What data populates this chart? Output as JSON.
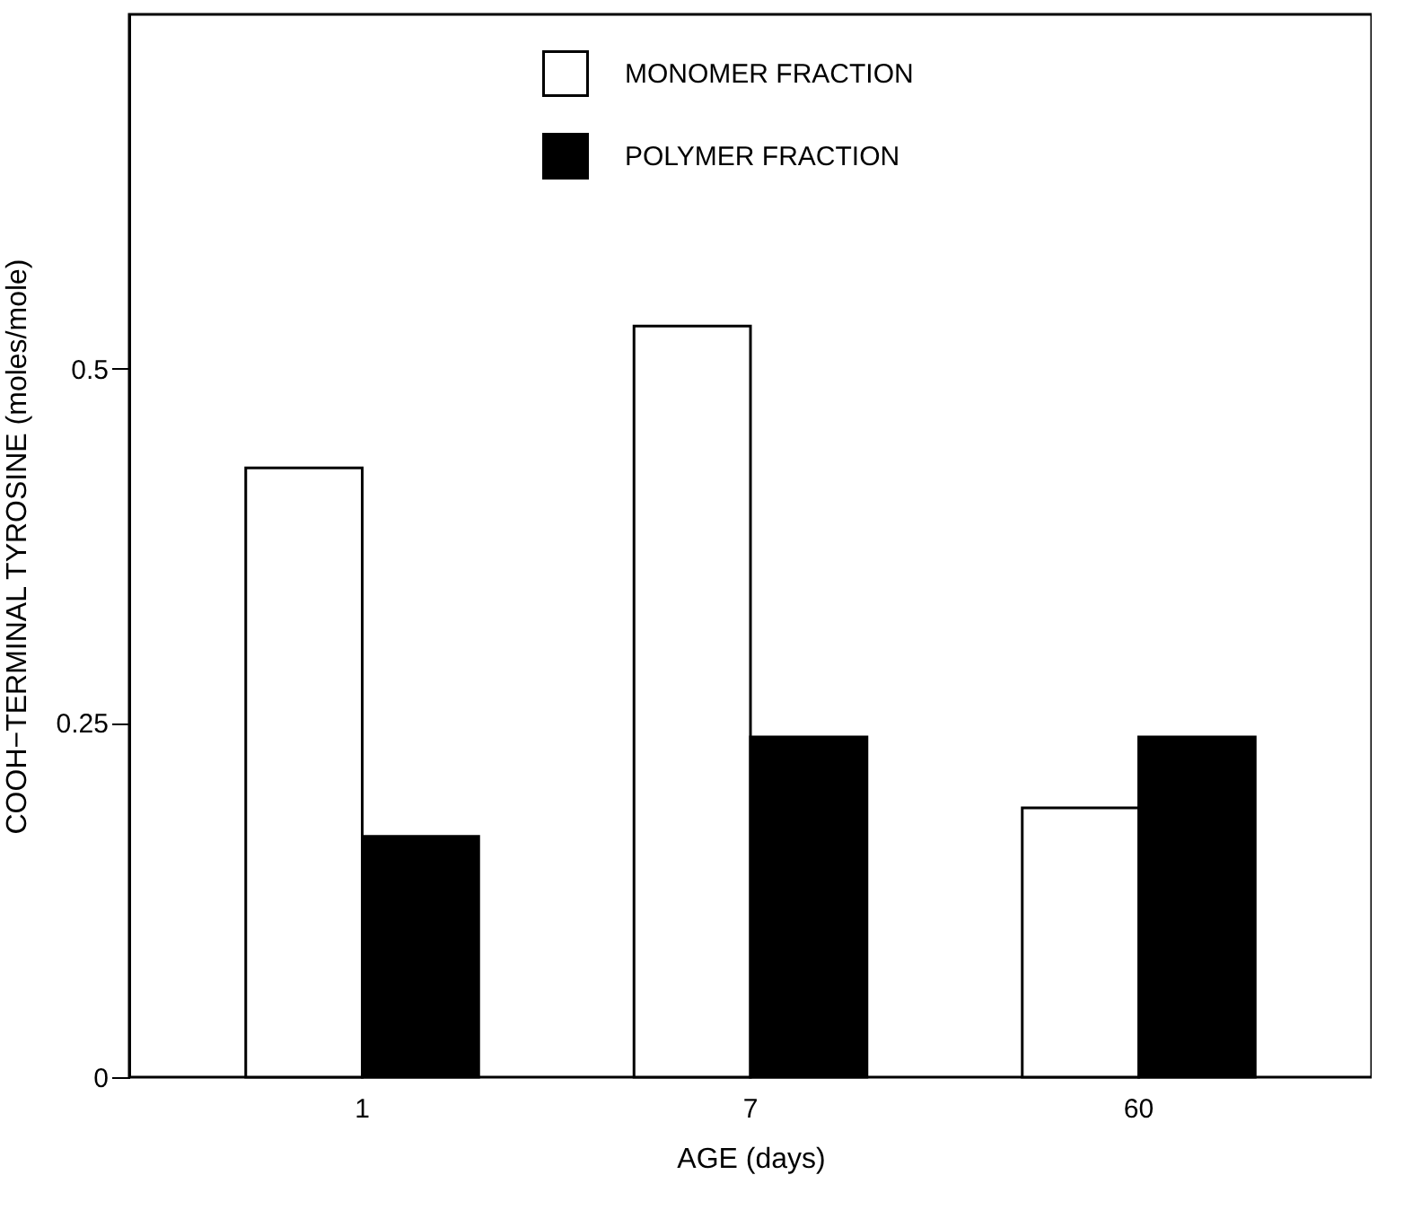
{
  "chart_data": {
    "type": "bar",
    "xlabel": "AGE (days)",
    "ylabel": "COOH−TERMINAL TYROSINE (moles/mole)",
    "categories": [
      "1",
      "7",
      "60"
    ],
    "series": [
      {
        "name": "MONOMER FRACTION",
        "color": "#ffffff",
        "values": [
          0.43,
          0.53,
          0.19
        ]
      },
      {
        "name": "POLYMER FRACTION",
        "color": "#000000",
        "values": [
          0.17,
          0.24,
          0.24
        ]
      }
    ],
    "ylim": [
      0,
      0.75
    ],
    "yticks": [
      {
        "value": 0,
        "label": "0"
      },
      {
        "value": 0.25,
        "label": "0.25"
      },
      {
        "value": 0.5,
        "label": "0.5"
      }
    ],
    "grid": false,
    "legend": "top"
  }
}
